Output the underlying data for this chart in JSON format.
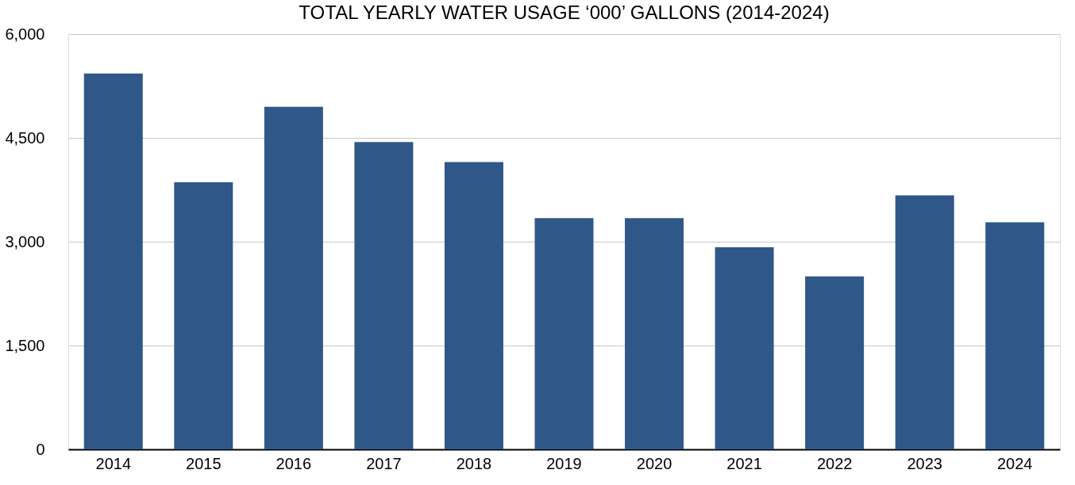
{
  "chart_data": {
    "type": "bar",
    "title": "TOTAL YEARLY WATER USAGE ‘000’ GALLONS (2014-2024)",
    "categories": [
      "2014",
      "2015",
      "2016",
      "2017",
      "2018",
      "2019",
      "2020",
      "2021",
      "2022",
      "2023",
      "2024"
    ],
    "values": [
      5430,
      3860,
      4950,
      4440,
      4150,
      3340,
      3340,
      2920,
      2500,
      3670,
      3280
    ],
    "color": "#2f5889",
    "ylim": [
      0,
      6000
    ],
    "yticks": [
      {
        "value": 0,
        "label": "0"
      },
      {
        "value": 1500,
        "label": "1,500"
      },
      {
        "value": 3000,
        "label": "3,000"
      },
      {
        "value": 4500,
        "label": "4,500"
      },
      {
        "value": 6000,
        "label": "6,000"
      }
    ],
    "grid": "y"
  }
}
